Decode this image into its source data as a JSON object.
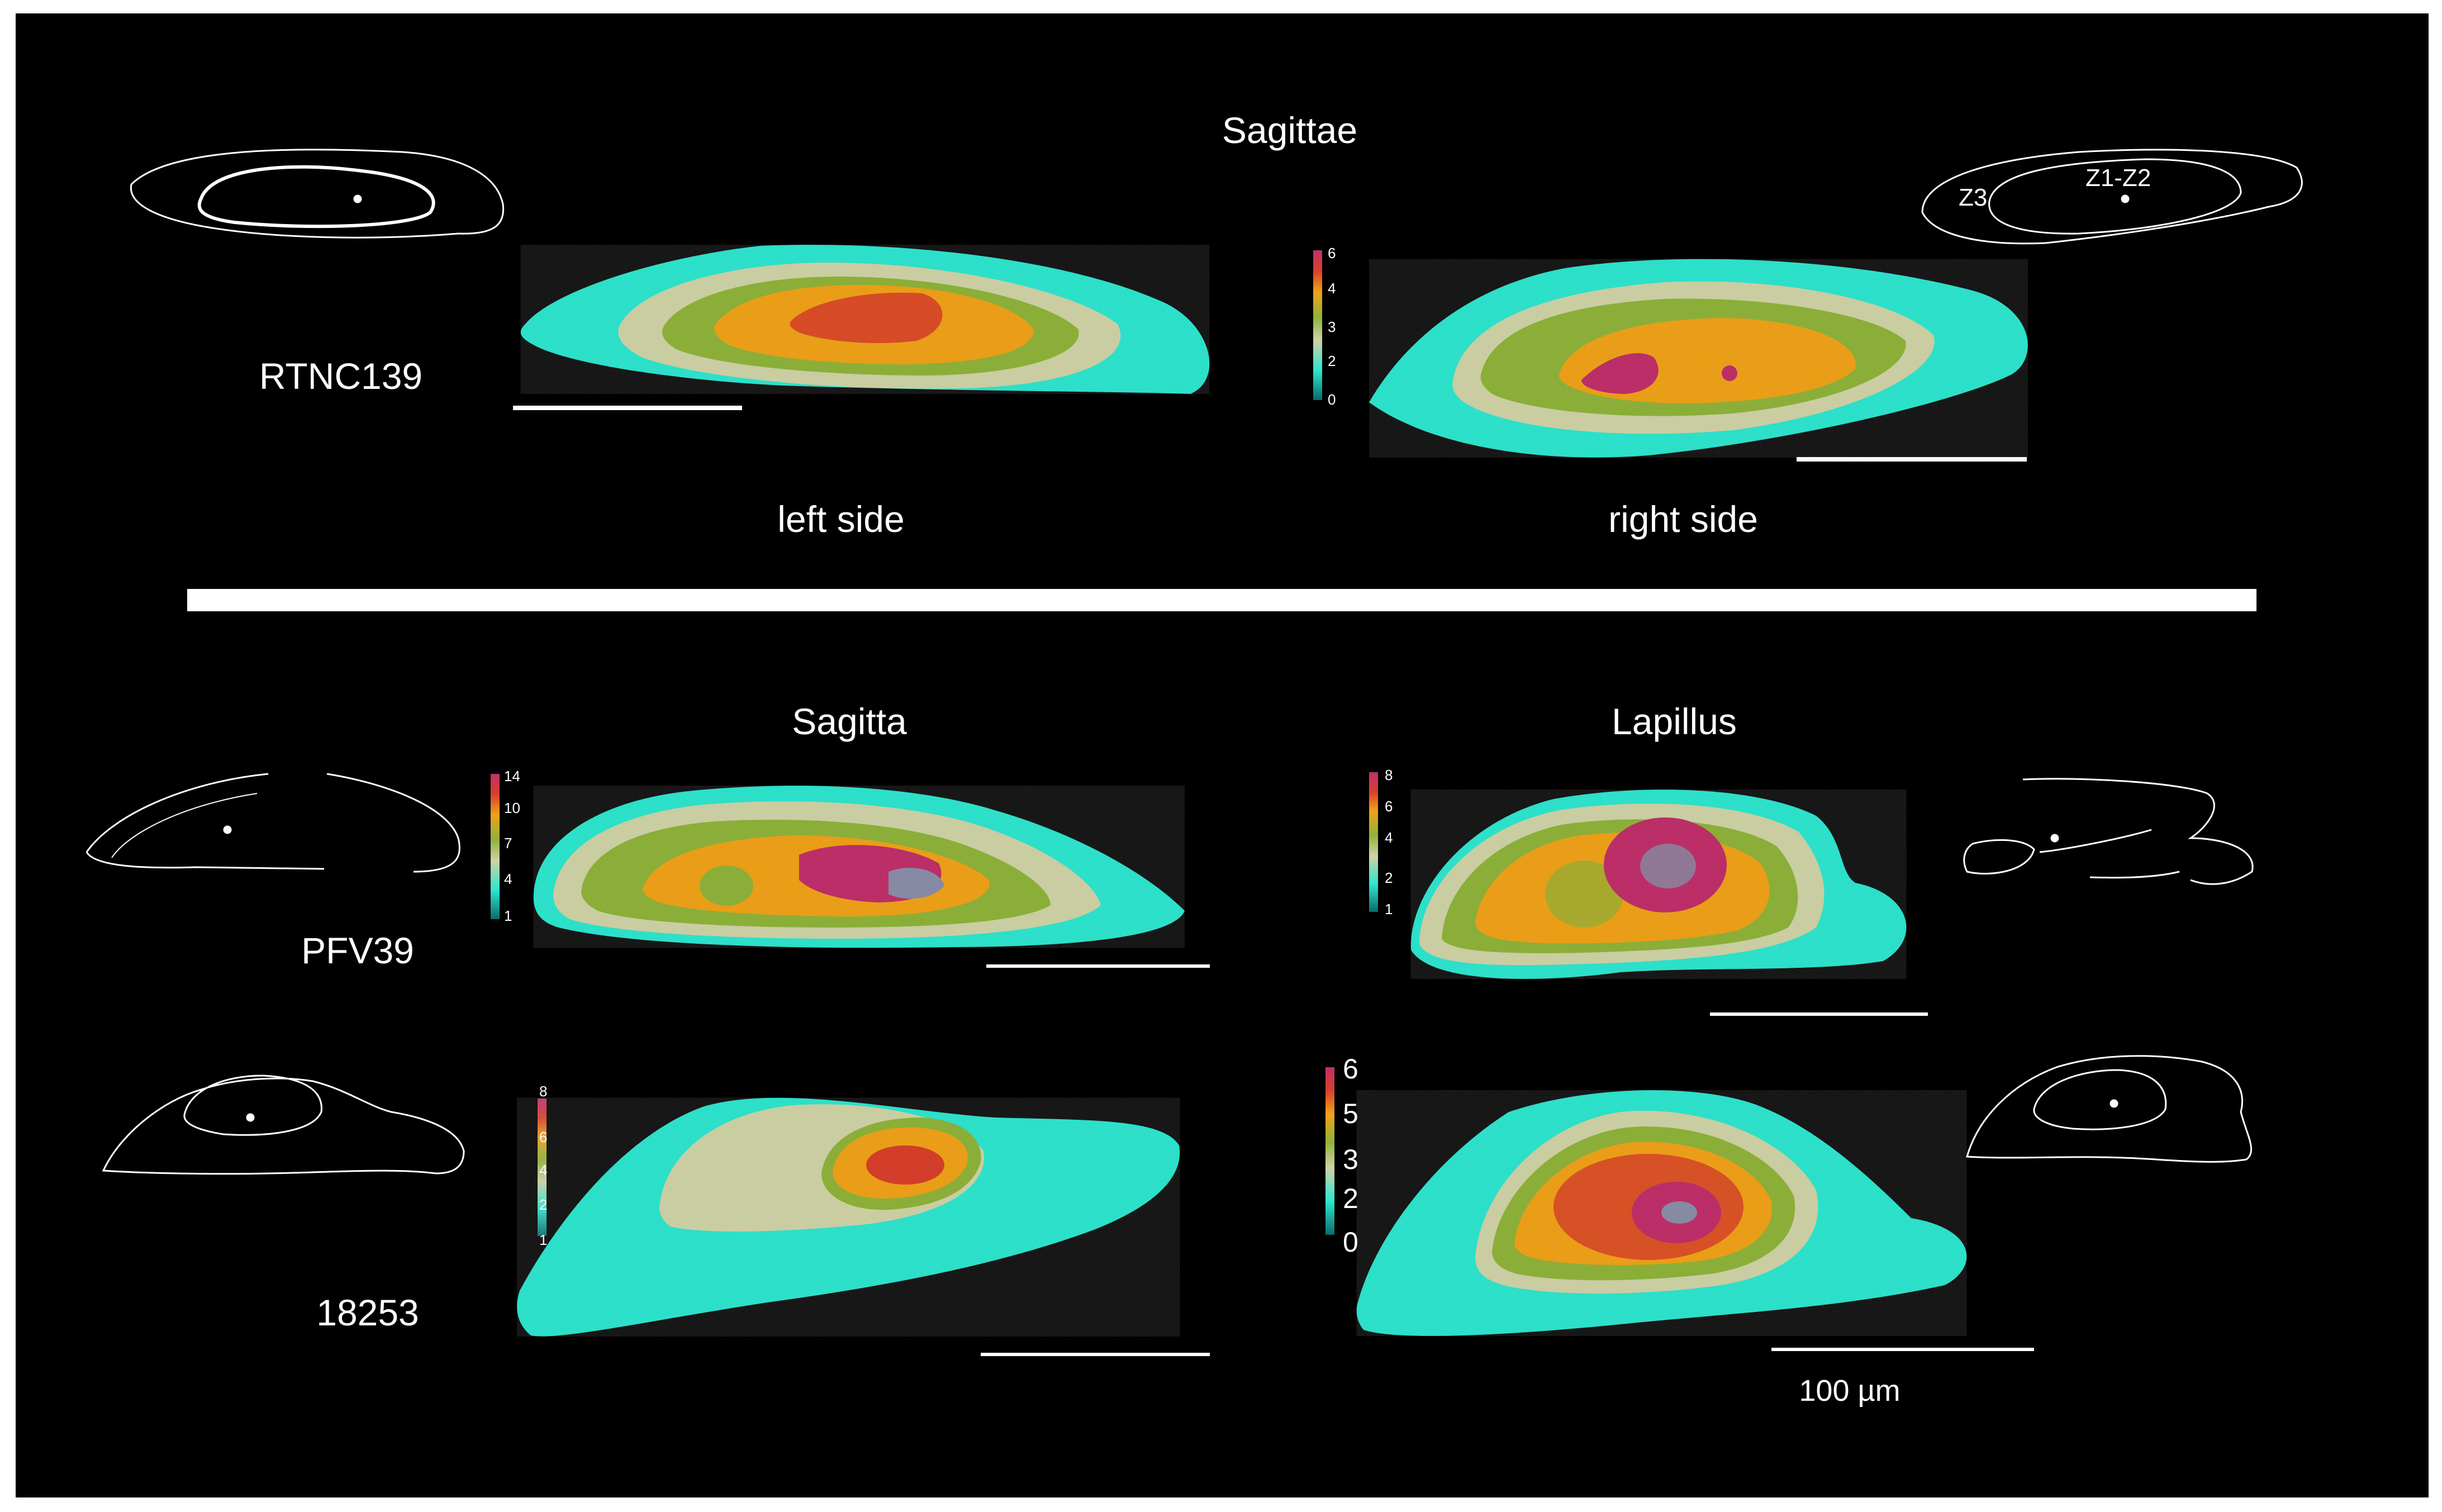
{
  "figure": {
    "top_title": "Sagittae",
    "top_specimen": "RTNC139",
    "top_left_caption": "left side",
    "top_right_caption": "right side",
    "bottom_left_title": "Sagitta",
    "bottom_right_title": "Lapillus",
    "specimen_a": "PFV39",
    "specimen_b": "18253",
    "scale_label": "100 µm",
    "zone_labels": [
      "Z3",
      "Z1-Z2"
    ],
    "colorbars": {
      "top": [
        "6",
        "4",
        "3",
        "2",
        "0"
      ],
      "pfv39_sagitta": [
        "14",
        "10",
        "7",
        "4",
        "1"
      ],
      "pfv39_lapillus": [
        "8",
        "6",
        "4",
        "2",
        "1"
      ],
      "s18253_sagitta": [
        "8",
        "6",
        "4",
        "2",
        "1"
      ],
      "s18253_lapillus": [
        "6",
        "5",
        "3",
        "2",
        "0"
      ]
    },
    "colors": {
      "background": "#000000",
      "frame": "#ffffff",
      "outer_ring": "#2ee6cf",
      "ring_beige": "#cfd3a6",
      "ring_green": "#8fb33a",
      "core_orange": "#f0a21a",
      "core_red": "#d8402c",
      "core_magenta": "#c0306a",
      "core_grey": "#8a8fa8"
    }
  }
}
